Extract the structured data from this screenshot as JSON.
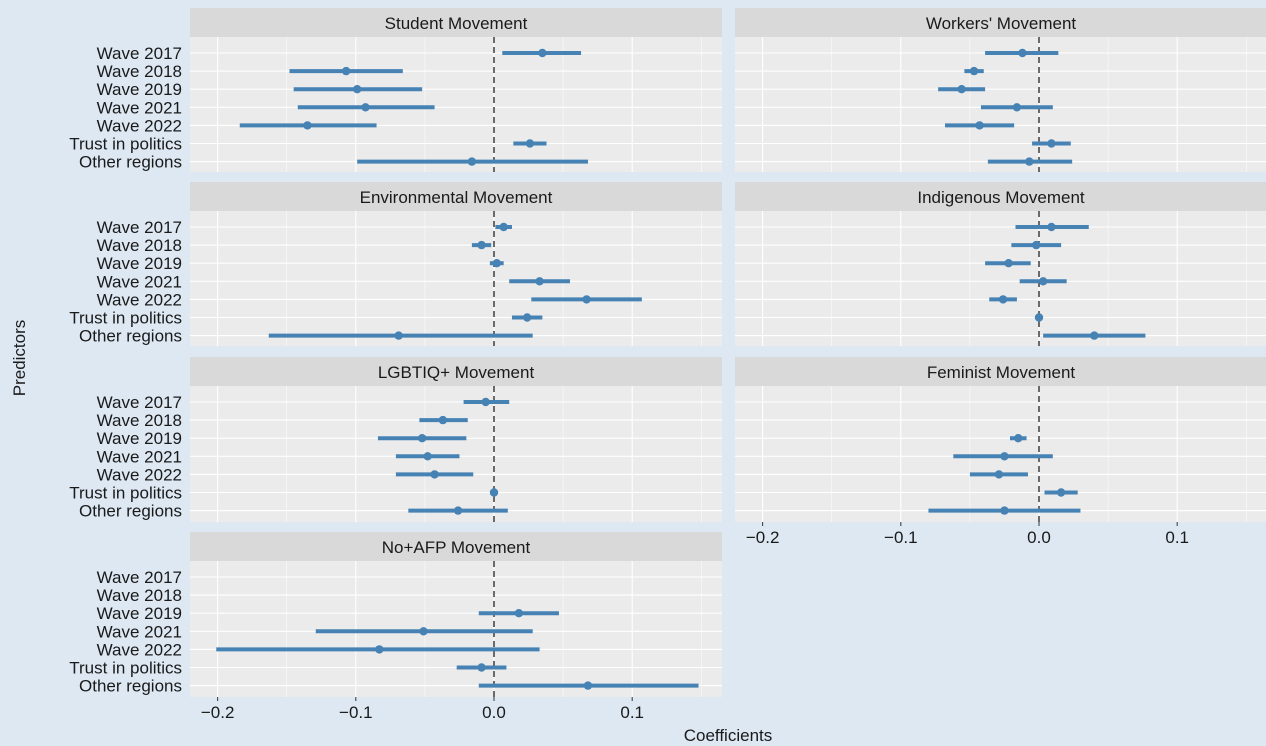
{
  "colors": {
    "background": "#dde8f3",
    "panel": "#ebebeb",
    "strip": "#d9d9d9",
    "grid": "#ffffff",
    "point": "#4682b4",
    "zero_line": "#333333",
    "text": "#1a1a1a"
  },
  "chart_data": {
    "type": "coefficient-plot",
    "xlabel": "Coefficients",
    "ylabel": "Predictors",
    "xlim": [
      -0.22,
      0.165
    ],
    "xticks": [
      -0.2,
      -0.1,
      0.0,
      0.1
    ],
    "xtick_labels": [
      "−0.2",
      "−0.1",
      "0.0",
      "0.1"
    ],
    "reference_line": 0,
    "grid": true,
    "predictors": [
      "Wave 2017",
      "Wave 2018",
      "Wave 2019",
      "Wave 2021",
      "Wave 2022",
      "Trust in politics",
      "Other regions"
    ],
    "panels": [
      {
        "title": "Student Movement",
        "estimates": [
          0.035,
          -0.107,
          -0.099,
          -0.093,
          -0.135,
          0.026,
          -0.016
        ],
        "lower": [
          0.006,
          -0.148,
          -0.145,
          -0.142,
          -0.184,
          0.014,
          -0.099
        ],
        "upper": [
          0.063,
          -0.066,
          -0.052,
          -0.043,
          -0.085,
          0.038,
          0.068
        ]
      },
      {
        "title": "Workers' Movement",
        "estimates": [
          -0.012,
          -0.047,
          -0.056,
          -0.016,
          -0.043,
          0.009,
          -0.007
        ],
        "lower": [
          -0.039,
          -0.054,
          -0.073,
          -0.042,
          -0.068,
          -0.005,
          -0.037
        ],
        "upper": [
          0.014,
          -0.04,
          -0.039,
          0.01,
          -0.018,
          0.023,
          0.024
        ]
      },
      {
        "title": "Environmental Movement",
        "estimates": [
          0.007,
          -0.009,
          0.002,
          0.033,
          0.067,
          0.024,
          -0.069
        ],
        "lower": [
          0.001,
          -0.016,
          -0.003,
          0.011,
          0.027,
          0.013,
          -0.163
        ],
        "upper": [
          0.013,
          -0.002,
          0.007,
          0.055,
          0.107,
          0.035,
          0.028
        ]
      },
      {
        "title": "Indigenous Movement",
        "estimates": [
          0.009,
          -0.002,
          -0.022,
          0.003,
          -0.026,
          0.0,
          0.04
        ],
        "lower": [
          -0.017,
          -0.02,
          -0.039,
          -0.014,
          -0.036,
          -0.001,
          0.003
        ],
        "upper": [
          0.036,
          0.016,
          -0.006,
          0.02,
          -0.016,
          0.001,
          0.077
        ]
      },
      {
        "title": "LGBTIQ+ Movement",
        "estimates": [
          -0.006,
          -0.037,
          -0.052,
          -0.048,
          -0.043,
          0.0,
          -0.026
        ],
        "lower": [
          -0.022,
          -0.054,
          -0.084,
          -0.071,
          -0.071,
          -0.001,
          -0.062
        ],
        "upper": [
          0.011,
          -0.019,
          -0.02,
          -0.025,
          -0.015,
          0.001,
          0.01
        ]
      },
      {
        "title": "Feminist Movement",
        "estimates": [
          null,
          null,
          -0.015,
          -0.025,
          -0.029,
          0.016,
          -0.025
        ],
        "lower": [
          null,
          null,
          -0.021,
          -0.062,
          -0.05,
          0.004,
          -0.08
        ],
        "upper": [
          null,
          null,
          -0.009,
          0.01,
          -0.008,
          0.028,
          0.03
        ]
      },
      {
        "title": "No+AFP Movement",
        "estimates": [
          null,
          null,
          0.018,
          -0.051,
          -0.083,
          -0.009,
          0.068
        ],
        "lower": [
          null,
          null,
          -0.011,
          -0.129,
          -0.201,
          -0.027,
          -0.011
        ],
        "upper": [
          null,
          null,
          0.047,
          0.028,
          0.033,
          0.009,
          0.148
        ]
      }
    ]
  }
}
